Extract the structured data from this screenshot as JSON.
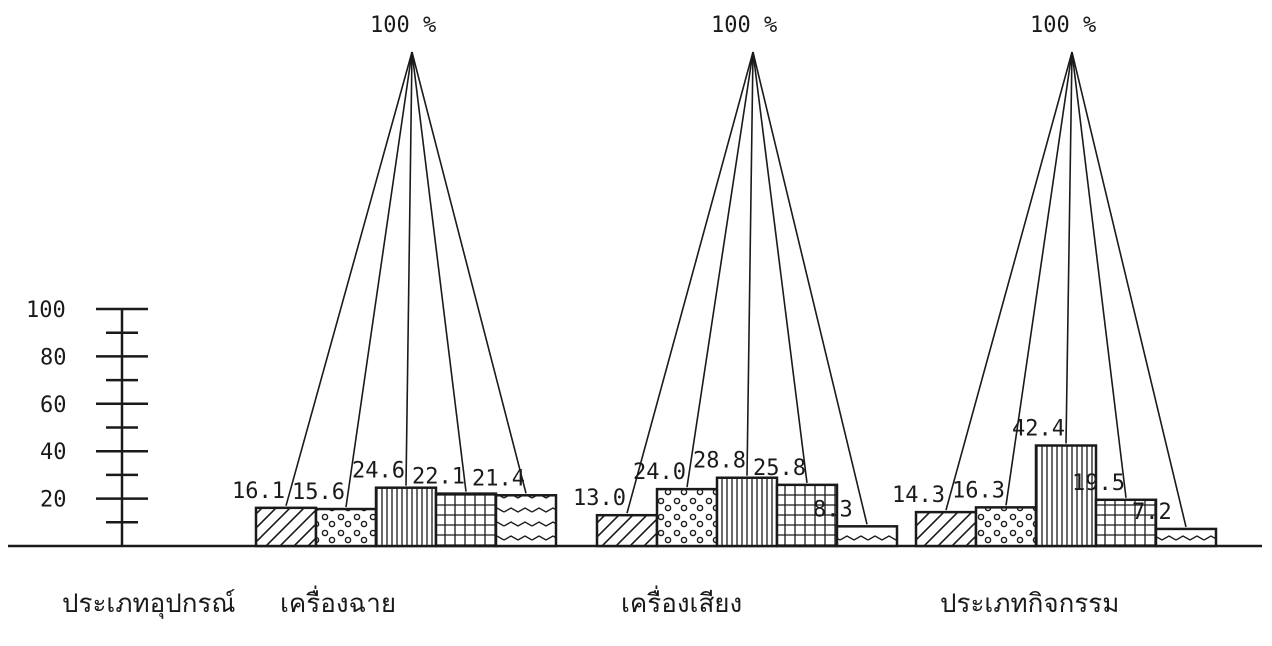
{
  "chart_data": {
    "type": "bar",
    "ylim": [
      0,
      100
    ],
    "y_ticks": [
      100,
      80,
      60,
      40,
      20
    ],
    "row_label": "ประเภทอุปกรณ์",
    "groups": [
      {
        "label": "เครื่องฉาย",
        "total_label": "100 %",
        "value_labels": [
          "16.1",
          "15.6",
          "24.6",
          "22.1",
          "21.4"
        ],
        "values": [
          16.1,
          15.6,
          24.6,
          22.1,
          21.4
        ]
      },
      {
        "label": "เครื่องเสียง",
        "total_label": "100 %",
        "value_labels": [
          "13.0",
          "24.0",
          "28.8",
          "25.8",
          "8.3"
        ],
        "values": [
          13.0,
          24.0,
          28.8,
          25.8,
          8.3
        ]
      },
      {
        "label": "ประเภทกิจกรรม",
        "total_label": "100 %",
        "value_labels": [
          "14.3",
          "16.3",
          "42.4",
          "19.5",
          "7.2"
        ],
        "values": [
          14.3,
          16.3,
          42.4,
          19.5,
          7.2
        ]
      }
    ],
    "patterns": [
      "diagonal-hatch",
      "dots",
      "vertical-lines",
      "grid",
      "waves"
    ],
    "grid": false,
    "legend": "none"
  }
}
